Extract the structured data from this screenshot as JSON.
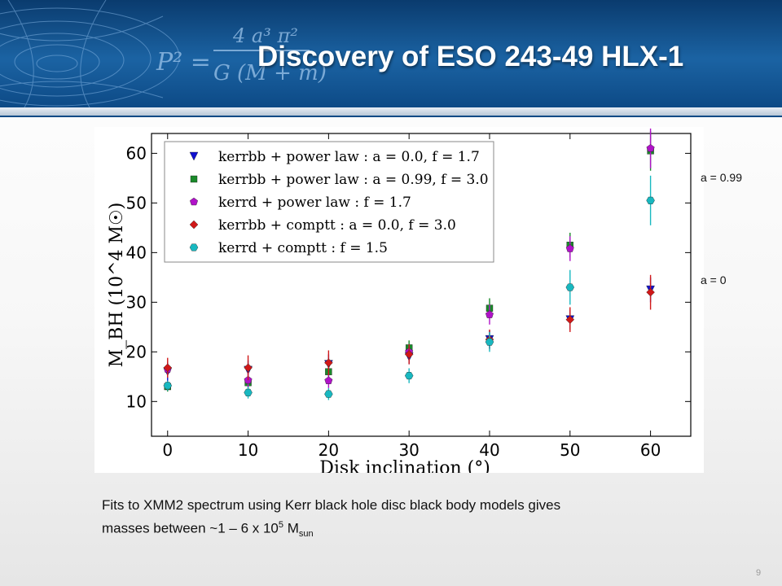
{
  "slide": {
    "title": "Discovery of ESO 243-49 HLX-1",
    "header_formula": {
      "lhs": "P² =",
      "numerator": "4 a³ π²",
      "denominator": "G (M + m)"
    },
    "caption_line1": "Fits to XMM2 spectrum using Kerr black hole disc black body models gives",
    "caption_line2_prefix": "masses between ~1 – 6 x 10",
    "caption_sup": "5",
    "caption_mid": " M",
    "caption_sub": "sun",
    "page_number": "9",
    "annotations": {
      "upper": "a = 0.99",
      "lower": "a = 0"
    }
  },
  "chart_data": {
    "type": "scatter",
    "title": "",
    "xlabel": "Disk inclination (°)",
    "ylabel": "M_BH (10^4 M☉)",
    "xlim": [
      -2,
      65
    ],
    "ylim": [
      3,
      64
    ],
    "xticks": [
      0,
      10,
      20,
      30,
      40,
      50,
      60
    ],
    "yticks": [
      10,
      20,
      30,
      40,
      50,
      60
    ],
    "grid": false,
    "legend_position": "top-left",
    "series": [
      {
        "name": "kerrbb + power law : a = 0.0, f = 1.7",
        "marker": "triangle-down",
        "color": "#1010d0",
        "x": [
          0,
          10,
          20,
          30,
          40,
          50,
          60
        ],
        "y": [
          16.0,
          16.3,
          17.5,
          19.0,
          22.5,
          26.5,
          32.5
        ],
        "err": [
          2.0,
          2.0,
          2.0,
          1.5,
          1.8,
          2.0,
          2.5
        ]
      },
      {
        "name": "kerrbb + power law : a = 0.99, f = 3.0",
        "marker": "square",
        "color": "#1a8a2a",
        "x": [
          0,
          10,
          20,
          30,
          40,
          50,
          60
        ],
        "y": [
          13.0,
          13.8,
          16.0,
          20.8,
          28.8,
          41.5,
          60.5
        ],
        "err": [
          1.0,
          1.2,
          1.5,
          1.5,
          2.0,
          2.5,
          4.0
        ]
      },
      {
        "name": "kerrd + power law : f = 1.7",
        "marker": "pentagon",
        "color": "#b012c8",
        "x": [
          0,
          10,
          20,
          30,
          40,
          50,
          60
        ],
        "y": [
          16.5,
          14.3,
          14.2,
          20.0,
          27.5,
          40.8,
          61.0
        ],
        "err": [
          1.5,
          1.5,
          1.5,
          1.5,
          2.0,
          2.5,
          4.0
        ]
      },
      {
        "name": "kerrbb + comptt : a = 0.0, f = 3.0",
        "marker": "diamond",
        "color": "#d01818",
        "x": [
          0,
          10,
          20,
          30,
          40,
          50,
          60
        ],
        "y": [
          16.8,
          16.8,
          17.8,
          19.5,
          22.5,
          26.5,
          32.0
        ],
        "err": [
          2.0,
          2.5,
          2.5,
          2.0,
          2.0,
          2.5,
          3.5
        ]
      },
      {
        "name": "kerrd + comptt : f = 1.5",
        "marker": "hexagon",
        "color": "#18b8c0",
        "x": [
          0,
          10,
          20,
          30,
          40,
          50,
          60
        ],
        "y": [
          13.2,
          11.8,
          11.5,
          15.2,
          22.0,
          33.0,
          50.5
        ],
        "err": [
          1.0,
          1.2,
          1.2,
          1.5,
          2.0,
          3.5,
          5.0
        ]
      }
    ]
  }
}
